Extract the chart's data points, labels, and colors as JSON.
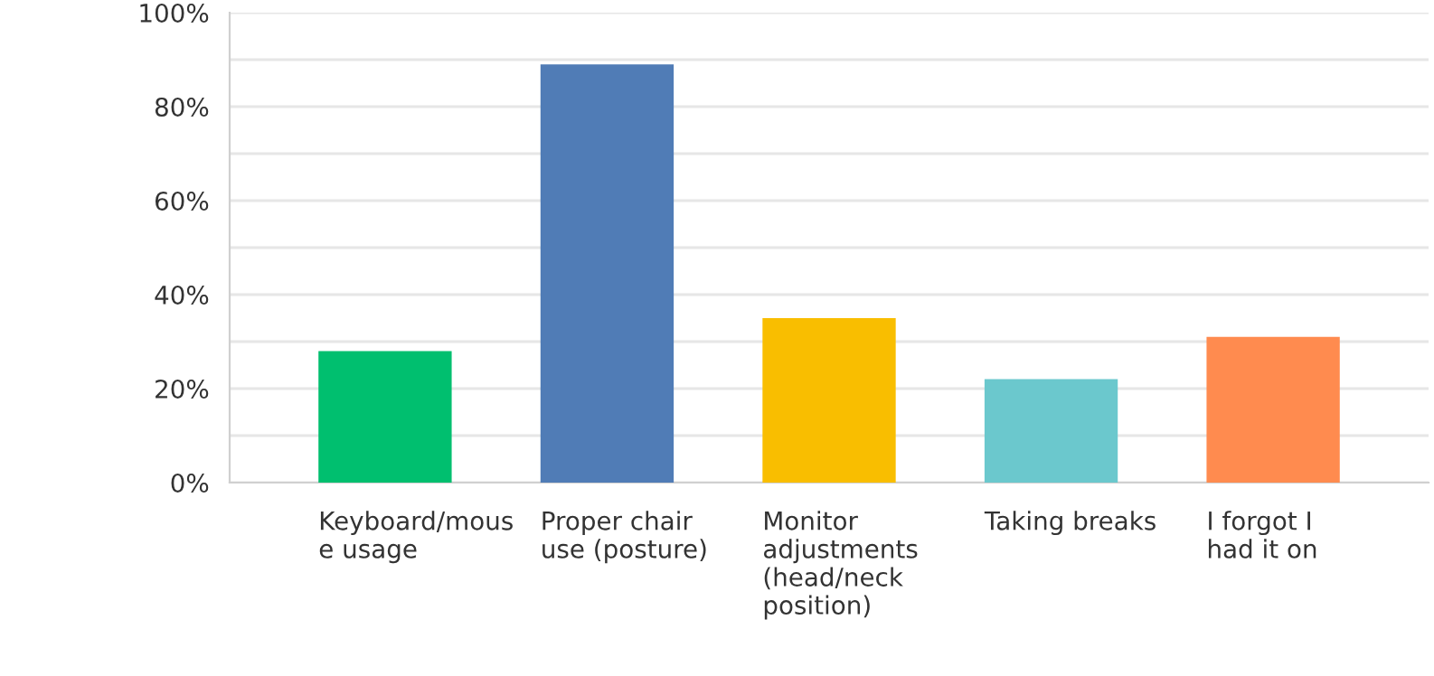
{
  "chart_data": {
    "type": "bar",
    "categories": [
      "Keyboard/mous\ne usage",
      "Proper chair\nuse (posture)",
      "Monitor\nadjustments\n(head/neck\nposition)",
      "Taking breaks",
      "I forgot I\nhad it on"
    ],
    "values": [
      28,
      89,
      35,
      22,
      31
    ],
    "colors": [
      "#00bf6f",
      "#507cb6",
      "#f9be00",
      "#6bc8cd",
      "#ff8b4f"
    ],
    "ylim": [
      0,
      100
    ],
    "yticks": [
      {
        "value": 0,
        "label": "0%"
      },
      {
        "value": 10,
        "label": null
      },
      {
        "value": 20,
        "label": "20%"
      },
      {
        "value": 30,
        "label": null
      },
      {
        "value": 40,
        "label": "40%"
      },
      {
        "value": 50,
        "label": null
      },
      {
        "value": 60,
        "label": "60%"
      },
      {
        "value": 70,
        "label": null
      },
      {
        "value": 80,
        "label": "80%"
      },
      {
        "value": 90,
        "label": null
      },
      {
        "value": 100,
        "label": "100%"
      }
    ],
    "grid": "y"
  }
}
